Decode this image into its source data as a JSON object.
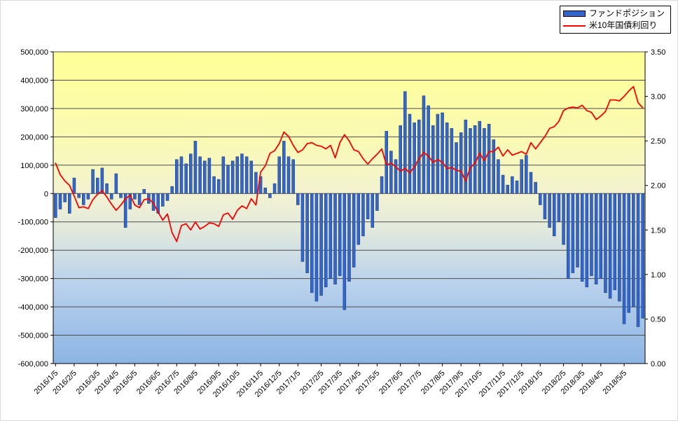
{
  "legend": {
    "items": [
      {
        "label": "ファンドポジション",
        "marker": "bar",
        "color": "#3366CC"
      },
      {
        "label": "米10年国債利回り",
        "marker": "line",
        "color": "#FF0000"
      }
    ]
  },
  "chart_data": {
    "type": "combo",
    "title": "",
    "xlabel": "",
    "ylabel_left": "",
    "ylabel_right": "",
    "grid": true,
    "legend_position": "top-right",
    "left_axis": {
      "min": -600000,
      "max": 500000,
      "step": 100000,
      "labels": [
        "500,000",
        "400,000",
        "300,000",
        "200,000",
        "100,000",
        "0",
        "-100,000",
        "-200,000",
        "-300,000",
        "-400,000",
        "-500,000",
        "-600,000"
      ],
      "label_color": "#000000",
      "negative_label_color": "#FF0000"
    },
    "right_axis": {
      "min": 0.0,
      "max": 3.5,
      "step": 0.5,
      "labels": [
        "3.50",
        "3.00",
        "2.50",
        "2.00",
        "1.50",
        "1.00",
        "0.50",
        "0.00"
      ],
      "label_color": "#000000"
    },
    "x_ticks": [
      {
        "index": 0,
        "label": "2016/1/5"
      },
      {
        "index": 4,
        "label": "2016/2/5"
      },
      {
        "index": 9,
        "label": "2016/3/5"
      },
      {
        "index": 13,
        "label": "2016/4/5"
      },
      {
        "index": 17,
        "label": "2016/5/5"
      },
      {
        "index": 22,
        "label": "2016/6/5"
      },
      {
        "index": 26,
        "label": "2016/7/5"
      },
      {
        "index": 30,
        "label": "2016/8/5"
      },
      {
        "index": 35,
        "label": "2016/9/5"
      },
      {
        "index": 39,
        "label": "2016/10/5"
      },
      {
        "index": 44,
        "label": "2016/11/5"
      },
      {
        "index": 48,
        "label": "2016/12/5"
      },
      {
        "index": 52,
        "label": "2017/1/5"
      },
      {
        "index": 57,
        "label": "2017/2/5"
      },
      {
        "index": 61,
        "label": "2017/3/5"
      },
      {
        "index": 65,
        "label": "2017/4/5"
      },
      {
        "index": 69,
        "label": "2017/5/5"
      },
      {
        "index": 74,
        "label": "2017/6/5"
      },
      {
        "index": 78,
        "label": "2017/7/5"
      },
      {
        "index": 83,
        "label": "2017/8/5"
      },
      {
        "index": 87,
        "label": "2017/9/5"
      },
      {
        "index": 91,
        "label": "2017/10/5"
      },
      {
        "index": 96,
        "label": "2017/11/5"
      },
      {
        "index": 100,
        "label": "2017/12/5"
      },
      {
        "index": 104,
        "label": "2018/1/5"
      },
      {
        "index": 109,
        "label": "2018/2/5"
      },
      {
        "index": 113,
        "label": "2018/3/5"
      },
      {
        "index": 117,
        "label": "2018/4/5"
      },
      {
        "index": 122,
        "label": "2018/5/5"
      }
    ],
    "series": [
      {
        "name": "ファンドポジション",
        "type": "bar",
        "axis": "left",
        "color": "#3366CC",
        "border_color": "#1F3864",
        "values": [
          -85000,
          -55000,
          -30000,
          -70000,
          55000,
          -15000,
          -40000,
          -20000,
          85000,
          55000,
          90000,
          35000,
          -20000,
          70000,
          -15000,
          -120000,
          -55000,
          -20000,
          -40000,
          15000,
          -35000,
          -60000,
          -70000,
          -45000,
          -25000,
          25000,
          120000,
          130000,
          105000,
          140000,
          185000,
          130000,
          115000,
          125000,
          60000,
          50000,
          130000,
          100000,
          115000,
          130000,
          140000,
          130000,
          115000,
          75000,
          60000,
          20000,
          -15000,
          35000,
          130000,
          185000,
          130000,
          120000,
          -40000,
          -240000,
          -280000,
          -350000,
          -380000,
          -360000,
          -330000,
          -300000,
          -320000,
          -290000,
          -410000,
          -310000,
          -260000,
          -180000,
          -150000,
          -90000,
          -120000,
          -60000,
          60000,
          220000,
          150000,
          120000,
          240000,
          360000,
          280000,
          250000,
          260000,
          345000,
          310000,
          240000,
          280000,
          285000,
          250000,
          230000,
          180000,
          215000,
          260000,
          230000,
          240000,
          255000,
          230000,
          245000,
          190000,
          120000,
          65000,
          30000,
          60000,
          45000,
          120000,
          135000,
          75000,
          40000,
          -40000,
          -90000,
          -120000,
          -150000,
          -100000,
          -180000,
          -300000,
          -280000,
          -260000,
          -310000,
          -330000,
          -290000,
          -320000,
          -300000,
          -350000,
          -370000,
          -340000,
          -380000,
          -460000,
          -420000,
          -400000,
          -470000,
          -440000
        ]
      },
      {
        "name": "米10年国債利回り",
        "type": "line",
        "axis": "right",
        "color": "#FF0000",
        "values": [
          2.25,
          2.12,
          2.05,
          2.0,
          1.88,
          1.75,
          1.76,
          1.74,
          1.84,
          1.9,
          1.94,
          1.87,
          1.79,
          1.72,
          1.78,
          1.85,
          1.89,
          1.78,
          1.75,
          1.84,
          1.85,
          1.8,
          1.7,
          1.61,
          1.68,
          1.47,
          1.37,
          1.55,
          1.57,
          1.5,
          1.59,
          1.51,
          1.54,
          1.58,
          1.57,
          1.54,
          1.67,
          1.69,
          1.62,
          1.72,
          1.77,
          1.74,
          1.85,
          1.78,
          2.15,
          2.22,
          2.36,
          2.39,
          2.47,
          2.6,
          2.55,
          2.45,
          2.37,
          2.4,
          2.47,
          2.48,
          2.45,
          2.44,
          2.41,
          2.45,
          2.31,
          2.48,
          2.57,
          2.5,
          2.4,
          2.38,
          2.3,
          2.24,
          2.3,
          2.35,
          2.41,
          2.23,
          2.25,
          2.21,
          2.16,
          2.19,
          2.14,
          2.21,
          2.3,
          2.37,
          2.33,
          2.26,
          2.29,
          2.26,
          2.19,
          2.2,
          2.17,
          2.16,
          2.05,
          2.2,
          2.25,
          2.36,
          2.28,
          2.38,
          2.38,
          2.43,
          2.33,
          2.4,
          2.34,
          2.36,
          2.38,
          2.35,
          2.48,
          2.41,
          2.48,
          2.55,
          2.64,
          2.66,
          2.72,
          2.84,
          2.87,
          2.88,
          2.87,
          2.9,
          2.84,
          2.82,
          2.74,
          2.78,
          2.83,
          2.96,
          2.96,
          2.95,
          3.0,
          3.06,
          3.11,
          2.93,
          2.87
        ]
      }
    ],
    "plot_gradient": [
      {
        "offset": 0,
        "color": "#FFFF96"
      },
      {
        "offset": 28,
        "color": "#FAFAB4"
      },
      {
        "offset": 46,
        "color": "#F2F2D2"
      },
      {
        "offset": 57,
        "color": "#E2E9DD"
      },
      {
        "offset": 74,
        "color": "#BAD2EC"
      },
      {
        "offset": 100,
        "color": "#8CB4E4"
      }
    ],
    "gridline_color": "#4D4D4D",
    "axis_line_color": "#000000"
  }
}
